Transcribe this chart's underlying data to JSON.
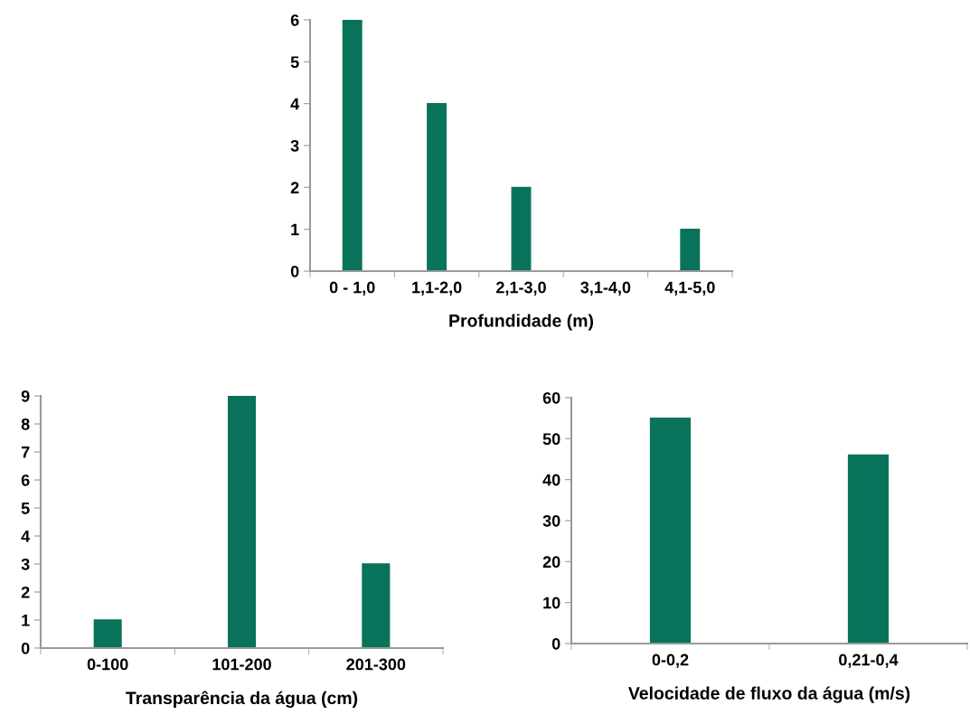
{
  "chart_data": [
    {
      "type": "bar",
      "xlabel": "Profundidade (m)",
      "categories": [
        "0 - 1,0",
        "1,1-2,0",
        "2,1-3,0",
        "3,1-4,0",
        "4,1-5,0"
      ],
      "values": [
        6,
        4,
        2,
        0,
        1
      ],
      "color": "#08735a",
      "ylim": [
        0,
        6
      ],
      "yticks": [
        0,
        1,
        2,
        3,
        4,
        5,
        6
      ],
      "grid": false
    },
    {
      "type": "bar",
      "xlabel": "Transparência da água (cm)",
      "categories": [
        "0-100",
        "101-200",
        "201-300"
      ],
      "values": [
        1,
        9,
        3
      ],
      "color": "#08735a",
      "ylim": [
        0,
        9
      ],
      "yticks": [
        0,
        1,
        2,
        3,
        4,
        5,
        6,
        7,
        8,
        9
      ],
      "grid": false
    },
    {
      "type": "bar",
      "xlabel": "Velocidade de fluxo da água (m/s)",
      "categories": [
        "0-0,2",
        "0,21-0,4"
      ],
      "values": [
        55,
        46
      ],
      "color": "#08735a",
      "ylim": [
        0,
        60
      ],
      "yticks": [
        0,
        10,
        20,
        30,
        40,
        50,
        60
      ],
      "grid": false
    }
  ]
}
